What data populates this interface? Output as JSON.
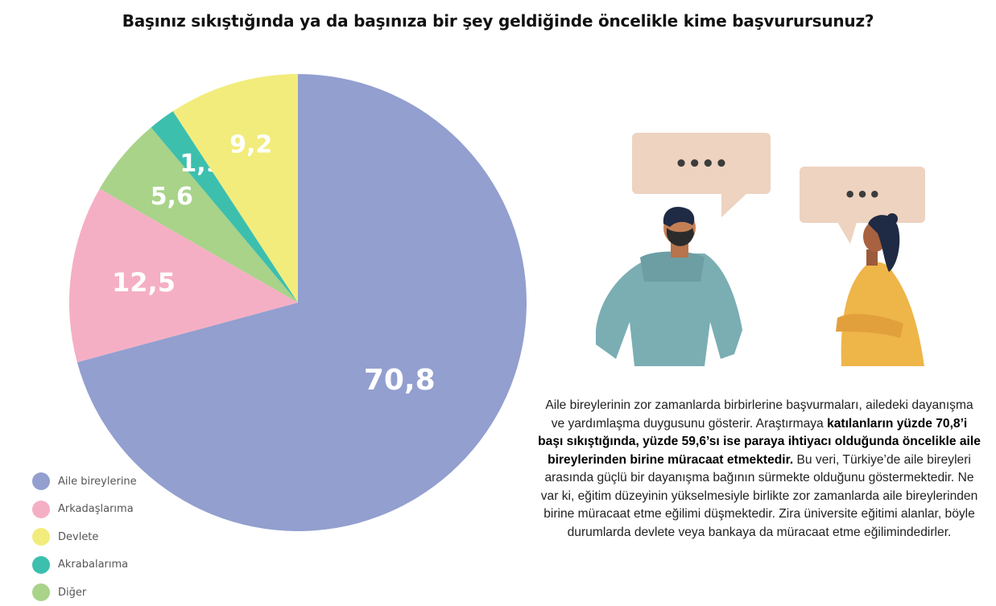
{
  "title": "Başınız sıkıştığında ya da başınıza bir şey geldiğinde öncelikle kime başvurursunuz?",
  "chart_data": {
    "type": "pie",
    "title": "Başınız sıkıştığında ya da başınıza bir şey geldiğinde öncelikle kime başvurursunuz?",
    "categories": [
      "Aile bireylerine",
      "Arkadaşlarıma",
      "Devlete",
      "Akrabalarıma",
      "Diğer"
    ],
    "slice_order_clockwise_from_top": [
      "Aile bireylerine",
      "Arkadaşlarıma",
      "Diğer",
      "Akrabalarıma",
      "Devlete"
    ],
    "values": {
      "Aile bireylerine": 70.8,
      "Arkadaşlarıma": 12.5,
      "Diğer": 5.6,
      "Akrabalarıma": 1.9,
      "Devlete": 9.2
    },
    "data_labels": {
      "Aile bireylerine": "70,8",
      "Arkadaşlarıma": "12,5",
      "Diğer": "5,6",
      "Akrabalarıma": "1,9",
      "Devlete": "9,2"
    },
    "colors": {
      "Aile bireylerine": "#929fcf",
      "Arkadaşlarıma": "#f5afc4",
      "Devlete": "#f2ec7c",
      "Akrabalarıma": "#3dbfae",
      "Diğer": "#a8d389"
    },
    "legend_position": "bottom-left"
  },
  "legend": [
    {
      "label": "Aile bireylerine",
      "color": "#929fcf"
    },
    {
      "label": "Arkadaşlarıma",
      "color": "#f5afc4"
    },
    {
      "label": "Devlete",
      "color": "#f2ec7c"
    },
    {
      "label": "Akrabalarıma",
      "color": "#3dbfae"
    },
    {
      "label": "Diğer",
      "color": "#a8d389"
    }
  ],
  "illustration": {
    "bubble_left_text": "••••",
    "bubble_right_text": "•••"
  },
  "description": {
    "part1": "Aile bireylerinin zor zamanlarda birbirlerine başvurmaları, ailedeki dayanışma ve yardımlaşma duygusunu gösterir. Araştırmaya ",
    "bold": "katılanların yüzde 70,8’i başı sıkıştığında, yüzde 59,6’sı ise paraya ihtiyacı olduğunda öncelikle aile bireylerinden birine müracaat etmektedir.",
    "part2": " Bu veri, Türkiye’de aile bireyleri arasında güçlü bir dayanışma bağının sürmekte olduğunu göstermektedir. Ne var ki, eğitim düzeyinin yükselmesiyle birlikte zor zamanlarda aile bireylerinden birine müracaat etme eğilimi düşmektedir. Zira üniversite eğitimi alanlar, böyle durumlarda devlete veya bankaya da müracaat etme eğilimindedirler."
  }
}
